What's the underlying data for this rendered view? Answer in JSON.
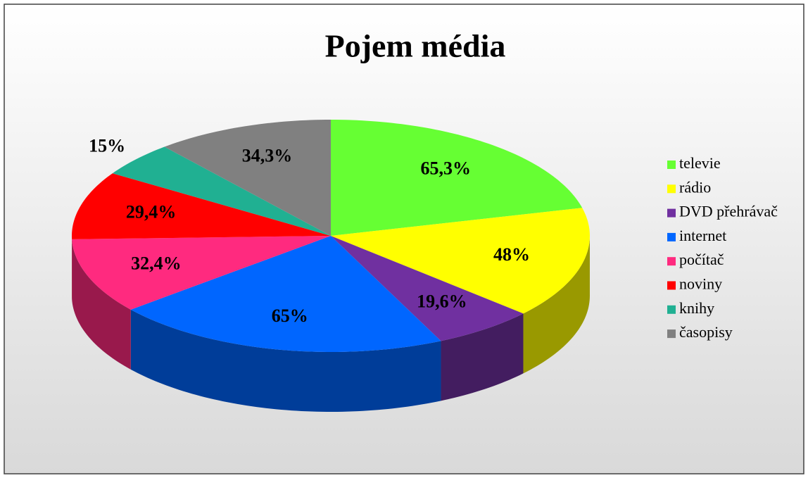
{
  "chart_data": {
    "type": "pie3d",
    "title": "Pojem média",
    "categories": [
      "televie",
      "rádio",
      "DVD přehrávač",
      "internet",
      "počítač",
      "noviny",
      "knihy",
      "časopisy"
    ],
    "values": [
      65.3,
      48,
      19.6,
      65,
      32.4,
      29.4,
      15,
      34.3
    ],
    "value_labels": [
      "65,3%",
      "48%",
      "19,6%",
      "65%",
      "32,4%",
      "29,4%",
      "15%",
      "34,3%"
    ],
    "colors": [
      "#66ff33",
      "#ffff00",
      "#7030a0",
      "#0066ff",
      "#ff2a7f",
      "#ff0000",
      "#20b092",
      "#808080"
    ],
    "legend": "right"
  }
}
